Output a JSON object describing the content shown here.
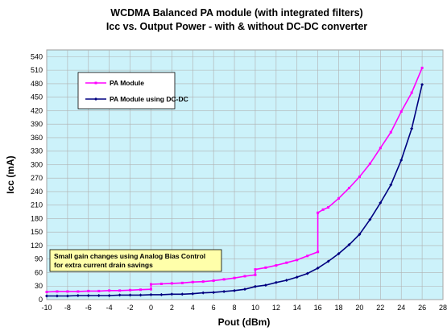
{
  "chart_data": {
    "type": "line",
    "title": "WCDMA Balanced PA module (with integrated filters)",
    "subtitle": "Icc vs. Output Power - with & without DC-DC converter",
    "xlabel": "Pout (dBm)",
    "ylabel": "Icc (mA)",
    "xlim": [
      -10,
      28
    ],
    "ylim": [
      0,
      555
    ],
    "x_ticks": [
      -10,
      -8,
      -6,
      -4,
      -2,
      0,
      2,
      4,
      6,
      8,
      10,
      12,
      14,
      16,
      18,
      20,
      22,
      24,
      26,
      28
    ],
    "y_ticks": [
      0,
      30,
      60,
      90,
      120,
      150,
      180,
      210,
      240,
      270,
      300,
      330,
      360,
      390,
      420,
      450,
      480,
      510,
      540
    ],
    "grid": true,
    "plot_background": "#ccf2fa",
    "legend_position": "top-left",
    "annotation": {
      "lines": [
        "Small gain changes using Analog Bias Control",
        "for extra current drain savings"
      ],
      "background": "#ffffaa"
    },
    "series": [
      {
        "name": "PA Module",
        "color": "#ff00ff",
        "x": [
          -10,
          -9,
          -8,
          -7,
          -6,
          -5,
          -4,
          -3,
          -2,
          -1,
          0,
          0,
          1,
          2,
          3,
          4,
          5,
          6,
          7,
          8,
          9,
          10,
          10,
          11,
          12,
          13,
          14,
          15,
          16,
          16,
          16.5,
          17,
          18,
          19,
          20,
          21,
          22,
          23,
          24,
          25,
          26
        ],
        "y": [
          17,
          18,
          18,
          18,
          19,
          19,
          20,
          20,
          21,
          22,
          23,
          34,
          35,
          36,
          37,
          39,
          40,
          42,
          45,
          48,
          52,
          55,
          67,
          71,
          76,
          82,
          88,
          97,
          106,
          193,
          200,
          205,
          225,
          248,
          273,
          302,
          337,
          372,
          418,
          460,
          515
        ]
      },
      {
        "name": "PA Module using DC-DC",
        "color": "#000080",
        "x": [
          -10,
          -9,
          -8,
          -7,
          -6,
          -5,
          -4,
          -3,
          -2,
          -1,
          0,
          1,
          2,
          3,
          4,
          5,
          6,
          7,
          8,
          9,
          10,
          11,
          12,
          13,
          14,
          15,
          16,
          17,
          18,
          19,
          20,
          21,
          22,
          23,
          24,
          25,
          26
        ],
        "y": [
          8,
          8,
          8,
          9,
          9,
          9,
          9,
          10,
          10,
          10,
          11,
          11,
          12,
          12,
          13,
          15,
          16,
          18,
          20,
          23,
          29,
          32,
          38,
          43,
          50,
          58,
          70,
          85,
          102,
          122,
          145,
          178,
          215,
          255,
          310,
          380,
          478
        ]
      }
    ]
  }
}
